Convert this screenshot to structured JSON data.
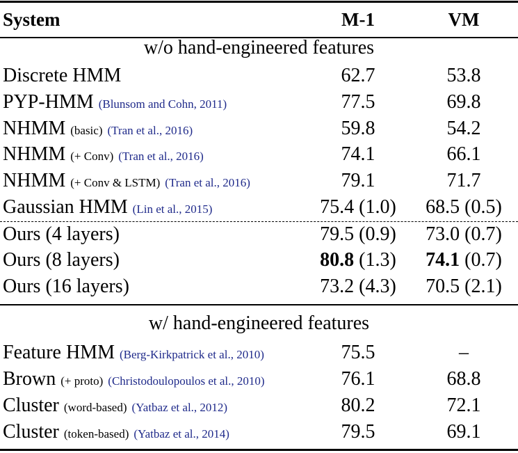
{
  "table": {
    "header": {
      "system": "System",
      "m1": "M-1",
      "vm": "VM"
    },
    "sections": [
      {
        "heading": "w/o hand-engineered features",
        "groups": [
          [
            {
              "name": "Discrete HMM",
              "m1": "62.7",
              "vm": "53.8"
            },
            {
              "name": "PYP-HMM",
              "cite": "(Blunsom and Cohn, 2011)",
              "m1": "77.5",
              "vm": "69.8"
            },
            {
              "name": "NHMM",
              "note": "(basic)",
              "cite": "(Tran et al., 2016)",
              "m1": "59.8",
              "vm": "54.2"
            },
            {
              "name": "NHMM",
              "note": "(+ Conv)",
              "cite": "(Tran et al., 2016)",
              "m1": "74.1",
              "vm": "66.1"
            },
            {
              "name": "NHMM",
              "note": "(+ Conv & LSTM)",
              "cite": "(Tran et al., 2016)",
              "m1": "79.1",
              "vm": "71.7"
            },
            {
              "name": "Gaussian HMM",
              "cite": "(Lin et al., 2015)",
              "m1": "75.4",
              "m1_sd": "(1.0)",
              "vm": "68.5",
              "vm_sd": "(0.5)"
            }
          ],
          [
            {
              "name": "Ours (4 layers)",
              "m1": "79.5",
              "m1_sd": "(0.9)",
              "vm": "73.0",
              "vm_sd": "(0.7)"
            },
            {
              "name": "Ours (8 layers)",
              "m1": "80.8",
              "m1_sd": "(1.3)",
              "vm": "74.1",
              "vm_sd": "(0.7)",
              "bold": true
            },
            {
              "name": "Ours (16 layers)",
              "m1": "73.2",
              "m1_sd": "(4.3)",
              "vm": "70.5",
              "vm_sd": "(2.1)"
            }
          ]
        ]
      },
      {
        "heading": "w/ hand-engineered features",
        "groups": [
          [
            {
              "name": "Feature HMM",
              "cite": "(Berg-Kirkpatrick et al., 2010)",
              "m1": "75.5",
              "vm": "–"
            },
            {
              "name": "Brown",
              "note": "(+ proto)",
              "cite": "(Christodoulopoulos et al., 2010)",
              "m1": "76.1",
              "vm": "68.8"
            },
            {
              "name": "Cluster",
              "note": "(word-based)",
              "cite": "(Yatbaz et al., 2012)",
              "m1": "80.2",
              "vm": "72.1"
            },
            {
              "name": "Cluster",
              "note": "(token-based)",
              "cite": "(Yatbaz et al., 2014)",
              "m1": "79.5",
              "vm": "69.1"
            }
          ]
        ]
      }
    ]
  }
}
